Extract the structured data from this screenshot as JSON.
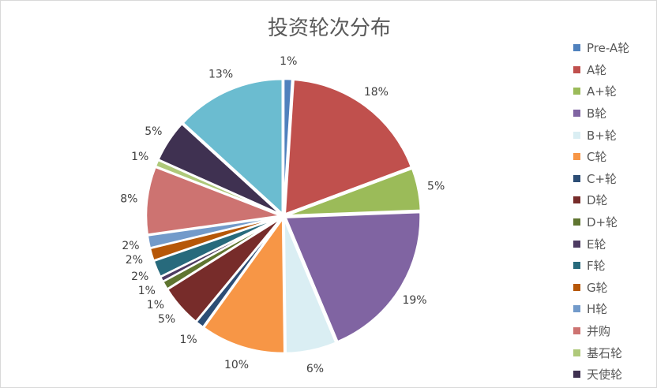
{
  "chart_data": {
    "type": "pie",
    "title": "投资轮次分布",
    "legend_position": "right",
    "slices": [
      {
        "name": "Pre-A轮",
        "value": 1,
        "label": "1%",
        "color": "#4F81BD"
      },
      {
        "name": "A轮",
        "value": 18,
        "label": "18%",
        "color": "#C0504D"
      },
      {
        "name": "A+轮",
        "value": 5,
        "label": "5%",
        "color": "#9BBB59"
      },
      {
        "name": "B轮",
        "value": 19,
        "label": "19%",
        "color": "#8064A2"
      },
      {
        "name": "B+轮",
        "value": 6,
        "label": "6%",
        "color": "#DAEEF3"
      },
      {
        "name": "C轮",
        "value": 10,
        "label": "10%",
        "color": "#F79646"
      },
      {
        "name": "C+轮",
        "value": 1,
        "label": "1%",
        "color": "#2C4D75"
      },
      {
        "name": "D轮",
        "value": 5,
        "label": "5%",
        "color": "#772C2A"
      },
      {
        "name": "D+轮",
        "value": 1,
        "label": "1%",
        "color": "#5F7530"
      },
      {
        "name": "E轮",
        "value": 0.6,
        "label": "1%",
        "color": "#4D3B62"
      },
      {
        "name": "F轮",
        "value": 2,
        "label": "2%",
        "color": "#276A7C"
      },
      {
        "name": "G轮",
        "value": 1.5,
        "label": "2%",
        "color": "#B65708"
      },
      {
        "name": "H轮",
        "value": 1.5,
        "label": "2%",
        "color": "#729ACA"
      },
      {
        "name": "并购",
        "value": 8,
        "label": "8%",
        "color": "#CD7371"
      },
      {
        "name": "基石轮",
        "value": 0.8,
        "label": "1%",
        "color": "#AFC97A"
      },
      {
        "name": "天使轮",
        "value": 5,
        "label": "5%",
        "color": "#3F3151"
      },
      {
        "name": "",
        "value": 13,
        "label": "13%",
        "color": "#6BBCD0"
      }
    ]
  }
}
